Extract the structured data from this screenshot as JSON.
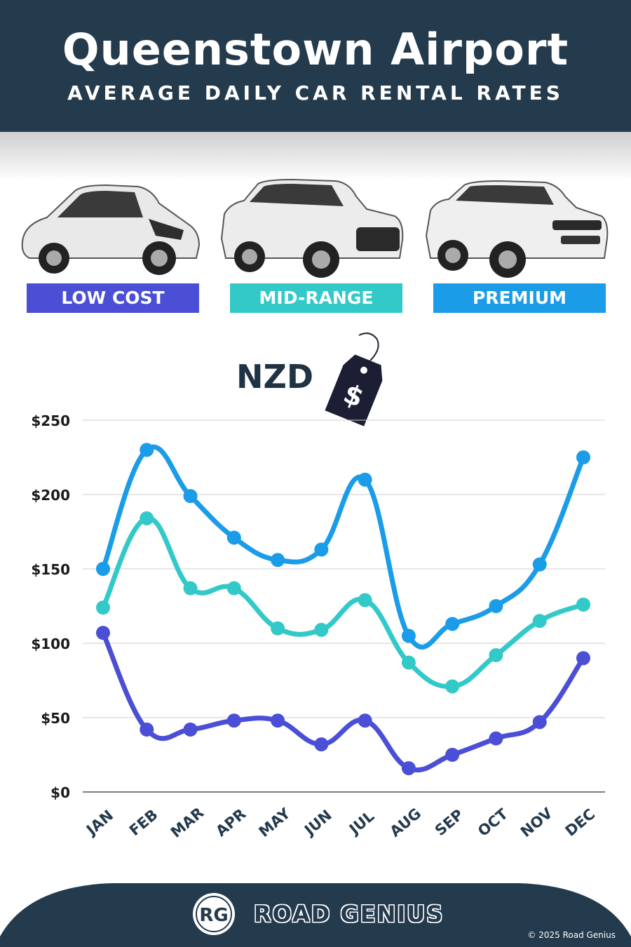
{
  "header": {
    "title": "Queenstown Airport",
    "subtitle": "AVERAGE DAILY CAR RENTAL RATES"
  },
  "categories": [
    {
      "label": "LOW COST",
      "color": "#4a4fd6",
      "car_icon": "hatchback-car-icon"
    },
    {
      "label": "MID-RANGE",
      "color": "#33c9c9",
      "car_icon": "suv-car-icon"
    },
    {
      "label": "PREMIUM",
      "color": "#1a9ce8",
      "car_icon": "luxury-suv-car-icon"
    }
  ],
  "currency": {
    "label": "NZD",
    "tag_symbol": "$"
  },
  "chart_data": {
    "type": "line",
    "x": [
      "JAN",
      "FEB",
      "MAR",
      "APR",
      "MAY",
      "JUN",
      "JUL",
      "AUG",
      "SEP",
      "OCT",
      "NOV",
      "DEC"
    ],
    "series": [
      {
        "name": "PREMIUM",
        "color": "#1a9ce8",
        "values": [
          150,
          230,
          199,
          171,
          156,
          163,
          210,
          105,
          113,
          125,
          153,
          225
        ]
      },
      {
        "name": "MID-RANGE",
        "color": "#33c9c9",
        "values": [
          124,
          184,
          137,
          137,
          110,
          109,
          129,
          87,
          71,
          92,
          115,
          126
        ]
      },
      {
        "name": "LOW COST",
        "color": "#4a4fd6",
        "values": [
          107,
          42,
          42,
          48,
          48,
          32,
          48,
          16,
          25,
          36,
          47,
          90
        ]
      }
    ],
    "yticks": [
      0,
      50,
      100,
      150,
      200,
      250
    ],
    "ytick_labels": [
      "$0",
      "$50",
      "$100",
      "$150",
      "$200",
      "$250"
    ],
    "ylim": [
      0,
      250
    ],
    "grid": true
  },
  "footer": {
    "logo_text": "RG",
    "brand": "ROAD GENIUS",
    "copyright": "© 2025 Road Genius",
    "background": "#243a4d"
  }
}
